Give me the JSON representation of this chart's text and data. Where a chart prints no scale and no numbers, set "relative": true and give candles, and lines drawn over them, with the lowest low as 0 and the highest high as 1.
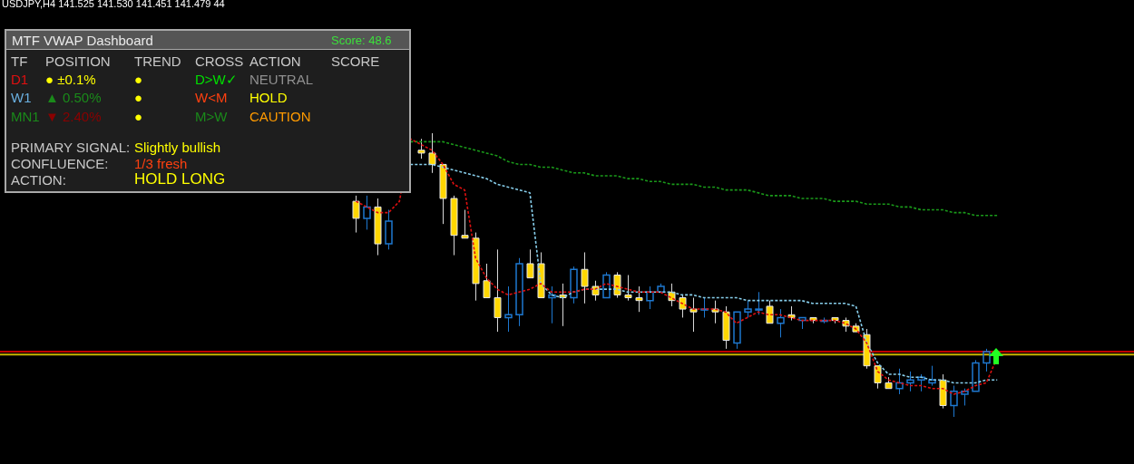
{
  "chart_data": [
    {
      "type": "candlestick",
      "title": "USDJPY,H4  141.525 141.530 141.451 141.479  44",
      "relative": true,
      "colors": [
        null,
        null,
        null,
        null,
        null,
        null,
        null,
        null,
        null,
        null,
        null,
        null,
        null,
        null,
        null,
        null,
        null,
        null,
        null,
        null,
        null,
        null,
        null,
        null,
        null,
        null,
        null,
        null,
        null,
        null,
        null,
        null,
        "#ffd700",
        "#1e78d0",
        "#ffd700",
        "#1e78d0",
        null,
        null,
        "#ffd700",
        "#ffd700",
        "#ffd700",
        "#ffd700",
        "#ffd700",
        "#ffd700",
        "#ffd700",
        "#ffd700",
        "#1e78d0",
        "#1e78d0",
        "#ffd700",
        "#ffd700",
        "#1e78d0",
        "#ffd700",
        "#1e78d0",
        "#ffd700",
        "#ffd700",
        "#1e78d0",
        "#ffd700",
        "#ffd700",
        "#ffd700",
        "#1e78d0",
        "#1e78d0",
        "#ffd700",
        "#ffd700",
        "#ffd700",
        "#1e78d0",
        "#ffd700",
        "#ffd700",
        "#1e78d0",
        "#1e78d0",
        "#1e78d0",
        "#ffd700",
        "#1e78d0",
        "#ffd700",
        "#1e78d0",
        "#ffd700",
        "#1e78d0",
        "#ffd700",
        "#ffd700",
        "#ffd700",
        "#ffd700",
        "#ffd700",
        "#ffd700",
        "#1e78d0",
        "#1e78d0",
        "#1e78d0",
        "#1e78d0",
        "#ffd700",
        "#1e78d0",
        "#1e78d0",
        "#1e78d0",
        "#1e78d0",
        null,
        null,
        null,
        null,
        null,
        null,
        null,
        null,
        null,
        null,
        null,
        null,
        null
      ],
      "categories": [
        null,
        null,
        null,
        null,
        null,
        null,
        null,
        null,
        null,
        null,
        null,
        null,
        null,
        null,
        null,
        null,
        null,
        null,
        null,
        null,
        null,
        null,
        null,
        null,
        null,
        null,
        null,
        null,
        null,
        null,
        null,
        null,
        null,
        null,
        null,
        null,
        null,
        null,
        null,
        null,
        null,
        null,
        null,
        null,
        null,
        null,
        null,
        null,
        null,
        null,
        null,
        null,
        null,
        null,
        null,
        null,
        null,
        null,
        null,
        null,
        null,
        null,
        null,
        null,
        null,
        null,
        null,
        null,
        null,
        null,
        null,
        null,
        null,
        null,
        null,
        null,
        null,
        null,
        null,
        null,
        null,
        null,
        null,
        null,
        null,
        null,
        null,
        null,
        null,
        null,
        null,
        null,
        null,
        null,
        null,
        null,
        null,
        null,
        null,
        null,
        null,
        null,
        null,
        null
      ],
      "ohlc": [
        null,
        null,
        null,
        null,
        null,
        null,
        null,
        null,
        null,
        null,
        null,
        null,
        null,
        null,
        null,
        null,
        null,
        null,
        null,
        null,
        null,
        null,
        null,
        null,
        null,
        null,
        null,
        null,
        null,
        null,
        null,
        null,
        [
          0.76,
          0.78,
          0.65,
          0.7
        ],
        [
          0.7,
          0.78,
          0.66,
          0.74
        ],
        [
          0.74,
          0.77,
          0.57,
          0.61
        ],
        [
          0.61,
          0.73,
          0.59,
          0.69
        ],
        null,
        null,
        [
          0.94,
          0.98,
          0.91,
          0.93
        ],
        [
          0.93,
          1,
          0.86,
          0.89
        ],
        [
          0.89,
          0.89,
          0.68,
          0.77
        ],
        [
          0.77,
          0.78,
          0.57,
          0.64
        ],
        [
          0.64,
          0.73,
          0.63,
          0.63
        ],
        [
          0.63,
          0.65,
          0.41,
          0.47
        ],
        [
          0.48,
          0.54,
          0.42,
          0.42
        ],
        [
          0.42,
          0.59,
          0.3,
          0.35
        ],
        [
          0.35,
          0.46,
          0.3,
          0.36
        ],
        [
          0.36,
          0.56,
          0.32,
          0.54
        ],
        [
          0.54,
          0.59,
          0.49,
          0.49
        ],
        [
          0.54,
          0.58,
          0.42,
          0.42
        ],
        [
          0.42,
          0.46,
          0.33,
          0.43
        ],
        [
          0.43,
          0.47,
          0.32,
          0.42
        ],
        [
          0.42,
          0.53,
          0.4,
          0.52
        ],
        [
          0.52,
          0.58,
          0.4,
          0.46
        ],
        [
          0.46,
          0.48,
          0.41,
          0.43
        ],
        [
          0.42,
          0.51,
          0.42,
          0.5
        ],
        [
          0.5,
          0.51,
          0.42,
          0.43
        ],
        [
          0.43,
          0.5,
          0.41,
          0.42
        ],
        [
          0.42,
          0.46,
          0.37,
          0.41
        ],
        [
          0.41,
          0.46,
          0.38,
          0.44
        ],
        [
          0.44,
          0.47,
          0.44,
          0.46
        ],
        [
          0.44,
          0.47,
          0.39,
          0.41
        ],
        [
          0.42,
          0.43,
          0.35,
          0.38
        ],
        [
          0.38,
          0.42,
          0.3,
          0.37
        ],
        [
          0.38,
          0.42,
          0.35,
          0.38
        ],
        [
          0.38,
          0.41,
          0.33,
          0.37
        ],
        [
          0.37,
          0.39,
          0.24,
          0.27
        ],
        [
          0.26,
          0.37,
          0.24,
          0.37
        ],
        [
          0.37,
          0.41,
          0.35,
          0.38
        ],
        [
          0.38,
          0.44,
          0.36,
          0.38
        ],
        [
          0.39,
          0.41,
          0.33,
          0.33
        ],
        [
          0.33,
          0.38,
          0.28,
          0.35
        ],
        [
          0.36,
          0.39,
          0.34,
          0.35
        ],
        [
          0.34,
          0.35,
          0.31,
          0.35
        ],
        [
          0.35,
          0.35,
          0.33,
          0.34
        ],
        [
          0.34,
          0.35,
          0.33,
          0.34
        ],
        [
          0.35,
          0.35,
          0.33,
          0.34
        ],
        [
          0.34,
          0.35,
          0.3,
          0.32
        ],
        [
          0.32,
          0.33,
          0.3,
          0.3
        ],
        [
          0.29,
          0.31,
          0.17,
          0.18
        ],
        [
          0.18,
          0.18,
          0.1,
          0.12
        ],
        [
          0.12,
          0.14,
          0.1,
          0.1
        ],
        [
          0.1,
          0.17,
          0.08,
          0.12
        ],
        [
          0.12,
          0.16,
          0.09,
          0.13
        ],
        [
          0.13,
          0.15,
          0.09,
          0.14
        ],
        [
          0.12,
          0.18,
          0.11,
          0.13
        ],
        [
          0.13,
          0.15,
          0.03,
          0.04
        ],
        [
          0.04,
          0.11,
          0,
          0.09
        ],
        [
          0.08,
          0.1,
          0.04,
          0.09
        ],
        [
          0.09,
          0.2,
          0.09,
          0.19
        ],
        [
          0.19,
          0.24,
          0.16,
          0.23
        ],
        null,
        null,
        null,
        null,
        null,
        null,
        null,
        null,
        null,
        null,
        null,
        null,
        null
      ],
      "series": [
        {
          "type": "line",
          "color": "#e01010",
          "line_style": "dashed",
          "marker": "none",
          "values": [
            null,
            null,
            null,
            null,
            null,
            null,
            null,
            null,
            null,
            null,
            null,
            null,
            null,
            null,
            null,
            null,
            null,
            null,
            null,
            null,
            null,
            null,
            null,
            null,
            null,
            null,
            null,
            null,
            null,
            null,
            null,
            null,
            0.76,
            0.74,
            0.72,
            0.72,
            0.76,
            0.98,
            0.96,
            0.94,
            0.89,
            0.82,
            0.8,
            0.56,
            0.49,
            0.45,
            0.43,
            0.44,
            0.45,
            0.47,
            0.44,
            0.44,
            0.44,
            0.45,
            0.45,
            0.47,
            0.46,
            0.45,
            0.44,
            0.44,
            0.44,
            0.42,
            0.4,
            0.38,
            0.38,
            0.38,
            0.37,
            0.33,
            0.35,
            0.37,
            0.36,
            0.36,
            0.35,
            0.34,
            0.34,
            0.34,
            0.34,
            0.33,
            0.31,
            0.26,
            0.16,
            0.13,
            0.12,
            0.11,
            0.11,
            0.1,
            0.1,
            0.08,
            0.09,
            0.11,
            0.12,
            0.21,
            null,
            null,
            null,
            null,
            null,
            null,
            null,
            null,
            null,
            null,
            null,
            null
          ]
        },
        {
          "type": "line",
          "color": "#87ceeb",
          "line_style": "dashed",
          "marker": "none",
          "values": [
            null,
            null,
            null,
            null,
            null,
            null,
            null,
            null,
            null,
            null,
            null,
            null,
            null,
            null,
            null,
            null,
            null,
            null,
            null,
            null,
            null,
            null,
            null,
            null,
            null,
            null,
            null,
            null,
            null,
            null,
            null,
            null,
            null,
            null,
            null,
            null,
            null,
            0.89,
            0.89,
            0.89,
            0.88,
            0.87,
            0.86,
            0.85,
            0.84,
            0.82,
            0.81,
            0.8,
            0.79,
            0.47,
            0.43,
            0.42,
            0.44,
            0.45,
            0.45,
            0.45,
            0.45,
            0.44,
            0.44,
            0.44,
            0.44,
            0.44,
            0.43,
            0.43,
            0.42,
            0.42,
            0.42,
            0.42,
            0.41,
            0.41,
            0.41,
            0.41,
            0.41,
            0.41,
            0.4,
            0.4,
            0.4,
            0.4,
            0.39,
            0.26,
            0.19,
            0.15,
            0.15,
            0.14,
            0.14,
            0.13,
            0.13,
            0.12,
            0.12,
            0.12,
            0.13,
            0.13,
            null,
            null,
            null,
            null,
            null,
            null,
            null,
            null,
            null,
            null,
            null,
            null
          ]
        },
        {
          "type": "line",
          "color": "#1a9a1a",
          "line_style": "dashed",
          "marker": "none",
          "values": [
            null,
            null,
            null,
            null,
            null,
            null,
            null,
            null,
            null,
            null,
            null,
            null,
            null,
            null,
            null,
            null,
            null,
            null,
            null,
            null,
            null,
            null,
            null,
            null,
            null,
            null,
            null,
            null,
            null,
            null,
            null,
            null,
            null,
            null,
            null,
            null,
            null,
            0.97,
            0.97,
            0.97,
            0.97,
            0.96,
            0.95,
            0.94,
            0.93,
            0.92,
            0.9,
            0.89,
            0.89,
            0.88,
            0.88,
            0.87,
            0.86,
            0.86,
            0.85,
            0.85,
            0.85,
            0.84,
            0.84,
            0.83,
            0.83,
            0.82,
            0.82,
            0.82,
            0.81,
            0.81,
            0.8,
            0.8,
            0.8,
            0.79,
            0.78,
            0.78,
            0.78,
            0.77,
            0.77,
            0.77,
            0.76,
            0.76,
            0.76,
            0.75,
            0.75,
            0.75,
            0.74,
            0.74,
            0.73,
            0.73,
            0.73,
            0.72,
            0.72,
            0.71,
            0.71,
            0.71,
            null,
            null,
            null,
            null,
            null,
            null,
            null,
            null,
            null,
            null,
            null,
            null
          ]
        }
      ],
      "ref_lines": [
        {
          "axis": "y",
          "value": 0.23,
          "color": "#c00000",
          "line_style": "solid"
        },
        {
          "axis": "y",
          "value": 0.22,
          "color": "#c8b400",
          "line_style": "solid"
        }
      ]
    },
    {
      "type": "other",
      "title": "MTF VWAP Dashboard",
      "annotations": [
        "Score: 48.6",
        "TF",
        "POSITION",
        "TREND",
        "CROSS",
        "ACTION",
        "SCORE",
        "D1",
        "● ±0.1%",
        "●",
        "D>W✓",
        "NEUTRAL",
        "W1",
        "▲ 0.50%",
        "●",
        "W<M",
        "HOLD",
        "MN1",
        "▼ 2.40%",
        "●",
        "M>W",
        "CAUTION",
        "PRIMARY SIGNAL:",
        "Slightly bullish",
        "CONFLUENCE:",
        "1/3 fresh",
        "ACTION:",
        "HOLD LONG"
      ],
      "colors": [
        "#3ce03c",
        "#c8c8c8",
        "#c8c8c8",
        "#c8c8c8",
        "#c8c8c8",
        "#c8c8c8",
        "#c8c8c8",
        "#e01010",
        "#ffff00",
        "#ffff00",
        "#00e000",
        "#909090",
        "#6ab0e0",
        "#1a8a1a",
        "#ffff00",
        "#ff4010",
        "#ffff00",
        "#1a8a1a",
        "#8b0000",
        "#ffff00",
        "#1a8a1a",
        "#ff9a00",
        "#c8c8c8",
        "#ffff00",
        "#c8c8c8",
        "#ff4010",
        "#c8c8c8",
        "#ffff00"
      ]
    }
  ]
}
